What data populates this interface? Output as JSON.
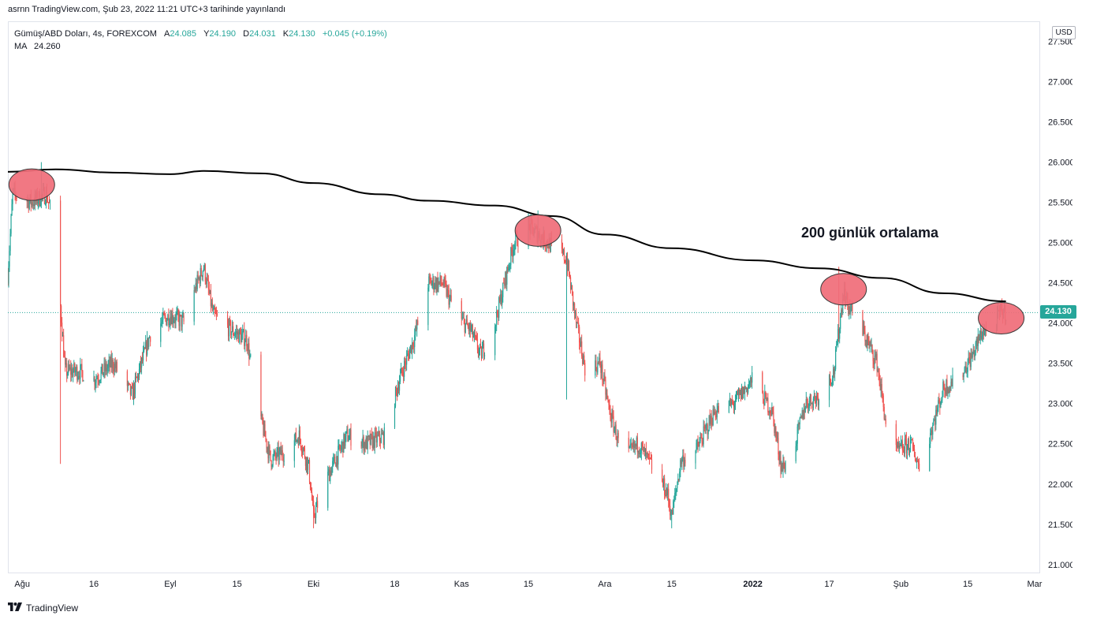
{
  "header": {
    "published": "asrnn TradingView.com, Şub 23, 2022 11:21 UTC+3 tarihinde yayınlandı"
  },
  "legend": {
    "symbol": "Gümüş/ABD Doları, 4s, FOREXCOM",
    "open_label": "A",
    "open": "24.085",
    "high_label": "Y",
    "high": "24.190",
    "low_label": "D",
    "low": "24.031",
    "close_label": "K",
    "close": "24.130",
    "change": "+0.045 (+0.19%)",
    "ma_label": "MA",
    "ma_value": "24.260"
  },
  "currency": "USD",
  "last_price": "24.130",
  "annotation": "200 günlük ortalama",
  "footer": {
    "brand": "TradingView",
    "logo_icon": "tradingview-logo-icon"
  },
  "colors": {
    "up": "#26a69a",
    "down": "#ef5350",
    "ma": "#000000",
    "highlight_fill": "#f06d78",
    "highlight_stroke": "#3a3a3a",
    "price_line": "#26a69a"
  },
  "chart_data": {
    "type": "candlestick",
    "x_ticks": [
      {
        "date": "2021-08-01",
        "label": "Ağu",
        "bold": false
      },
      {
        "date": "2021-08-16",
        "label": "16",
        "bold": false
      },
      {
        "date": "2021-09-01",
        "label": "Eyl",
        "bold": false
      },
      {
        "date": "2021-09-15",
        "label": "15",
        "bold": false
      },
      {
        "date": "2021-10-01",
        "label": "Eki",
        "bold": false
      },
      {
        "date": "2021-10-18",
        "label": "18",
        "bold": false
      },
      {
        "date": "2021-11-01",
        "label": "Kas",
        "bold": false
      },
      {
        "date": "2021-11-15",
        "label": "15",
        "bold": false
      },
      {
        "date": "2021-12-01",
        "label": "Ara",
        "bold": false
      },
      {
        "date": "2021-12-15",
        "label": "15",
        "bold": false
      },
      {
        "date": "2022-01-01",
        "label": "2022",
        "bold": true
      },
      {
        "date": "2022-01-17",
        "label": "17",
        "bold": false
      },
      {
        "date": "2022-02-01",
        "label": "Şub",
        "bold": false
      },
      {
        "date": "2022-02-15",
        "label": "15",
        "bold": false
      },
      {
        "date": "2022-03-01",
        "label": "Mar",
        "bold": false
      }
    ],
    "y_ticks": [
      "27.500",
      "27.000",
      "26.500",
      "26.000",
      "25.500",
      "25.000",
      "24.500",
      "24.000",
      "23.500",
      "23.000",
      "22.500",
      "22.000",
      "21.500",
      "21.000"
    ],
    "ylim": [
      20.9,
      27.75
    ],
    "x_range": [
      "2021-07-29",
      "2022-03-02"
    ],
    "price_path": [
      [
        "2021-07-29",
        24.6
      ],
      [
        "2021-07-30",
        25.6
      ],
      [
        "2021-08-03",
        25.5
      ],
      [
        "2021-08-06",
        25.6
      ],
      [
        "2021-08-08",
        25.2
      ],
      [
        "2021-08-09",
        24.2
      ],
      [
        "2021-08-10",
        23.4
      ],
      [
        "2021-08-13",
        23.4
      ],
      [
        "2021-08-16",
        23.3
      ],
      [
        "2021-08-20",
        23.5
      ],
      [
        "2021-08-24",
        23.1
      ],
      [
        "2021-08-28",
        23.9
      ],
      [
        "2021-09-01",
        24.1
      ],
      [
        "2021-09-04",
        24.0
      ],
      [
        "2021-09-06",
        24.4
      ],
      [
        "2021-09-08",
        24.7
      ],
      [
        "2021-09-10",
        24.1
      ],
      [
        "2021-09-14",
        23.9
      ],
      [
        "2021-09-17",
        23.8
      ],
      [
        "2021-09-20",
        22.8
      ],
      [
        "2021-09-22",
        22.3
      ],
      [
        "2021-09-25",
        22.4
      ],
      [
        "2021-09-28",
        22.6
      ],
      [
        "2021-09-30",
        22.2
      ],
      [
        "2021-10-01",
        21.6
      ],
      [
        "2021-10-04",
        22.1
      ],
      [
        "2021-10-08",
        22.6
      ],
      [
        "2021-10-12",
        22.5
      ],
      [
        "2021-10-16",
        22.6
      ],
      [
        "2021-10-19",
        23.3
      ],
      [
        "2021-10-22",
        23.8
      ],
      [
        "2021-10-25",
        24.5
      ],
      [
        "2021-10-28",
        24.5
      ],
      [
        "2021-10-31",
        24.1
      ],
      [
        "2021-11-03",
        23.9
      ],
      [
        "2021-11-05",
        23.6
      ],
      [
        "2021-11-08",
        24.0
      ],
      [
        "2021-11-10",
        24.5
      ],
      [
        "2021-11-12",
        25.0
      ],
      [
        "2021-11-15",
        25.2
      ],
      [
        "2021-11-19",
        25.0
      ],
      [
        "2021-11-23",
        24.8
      ],
      [
        "2021-11-25",
        24.0
      ],
      [
        "2021-11-27",
        23.4
      ],
      [
        "2021-11-30",
        23.5
      ],
      [
        "2021-12-02",
        22.9
      ],
      [
        "2021-12-05",
        22.3
      ],
      [
        "2021-12-08",
        22.5
      ],
      [
        "2021-12-12",
        22.1
      ],
      [
        "2021-12-14",
        21.9
      ],
      [
        "2021-12-15",
        21.6
      ],
      [
        "2021-12-17",
        22.3
      ],
      [
        "2021-12-20",
        22.4
      ],
      [
        "2021-12-24",
        22.9
      ],
      [
        "2021-12-28",
        23.0
      ],
      [
        "2022-01-01",
        23.3
      ],
      [
        "2022-01-05",
        22.9
      ],
      [
        "2022-01-07",
        22.2
      ],
      [
        "2022-01-09",
        22.3
      ],
      [
        "2022-01-12",
        23.0
      ],
      [
        "2022-01-15",
        23.1
      ],
      [
        "2022-01-18",
        23.4
      ],
      [
        "2022-01-20",
        24.4
      ],
      [
        "2022-01-21",
        24.2
      ],
      [
        "2022-01-24",
        23.9
      ],
      [
        "2022-01-27",
        23.5
      ],
      [
        "2022-01-29",
        22.7
      ],
      [
        "2022-01-31",
        22.4
      ],
      [
        "2022-02-03",
        22.5
      ],
      [
        "2022-02-05",
        22.2
      ],
      [
        "2022-02-07",
        22.6
      ],
      [
        "2022-02-10",
        23.2
      ],
      [
        "2022-02-13",
        23.3
      ],
      [
        "2022-02-16",
        23.6
      ],
      [
        "2022-02-18",
        23.9
      ],
      [
        "2022-02-20",
        23.9
      ],
      [
        "2022-02-22",
        24.15
      ],
      [
        "2022-02-23",
        24.13
      ]
    ],
    "spikes": [
      {
        "date": "2021-08-09",
        "low": 22.25
      },
      {
        "date": "2021-08-05",
        "high": 26.0
      },
      {
        "date": "2021-10-01",
        "low": 21.45
      },
      {
        "date": "2021-12-15",
        "low": 21.45
      },
      {
        "date": "2021-11-17",
        "high": 25.4
      },
      {
        "date": "2022-01-19",
        "high": 24.7
      },
      {
        "date": "2021-11-23",
        "low": 23.05
      }
    ],
    "ma_series": {
      "name": "MA",
      "points": [
        [
          "2021-07-29",
          25.88
        ],
        [
          "2021-08-08",
          25.91
        ],
        [
          "2021-08-20",
          25.87
        ],
        [
          "2021-09-01",
          25.85
        ],
        [
          "2021-09-08",
          25.89
        ],
        [
          "2021-09-20",
          25.86
        ],
        [
          "2021-10-01",
          25.74
        ],
        [
          "2021-10-15",
          25.6
        ],
        [
          "2021-10-25",
          25.52
        ],
        [
          "2021-11-08",
          25.46
        ],
        [
          "2021-11-20",
          25.33
        ],
        [
          "2021-12-01",
          25.1
        ],
        [
          "2021-12-15",
          24.93
        ],
        [
          "2022-01-01",
          24.78
        ],
        [
          "2022-01-15",
          24.68
        ],
        [
          "2022-01-28",
          24.56
        ],
        [
          "2022-02-10",
          24.37
        ],
        [
          "2022-02-23",
          24.27
        ]
      ]
    },
    "highlights": [
      {
        "date": "2021-08-03",
        "price": 25.72
      },
      {
        "date": "2021-11-17",
        "price": 25.15
      },
      {
        "date": "2022-01-20",
        "price": 24.42
      },
      {
        "date": "2022-02-22",
        "price": 24.06
      }
    ],
    "last_price": 24.13,
    "grid": false,
    "legend": "top-left"
  }
}
